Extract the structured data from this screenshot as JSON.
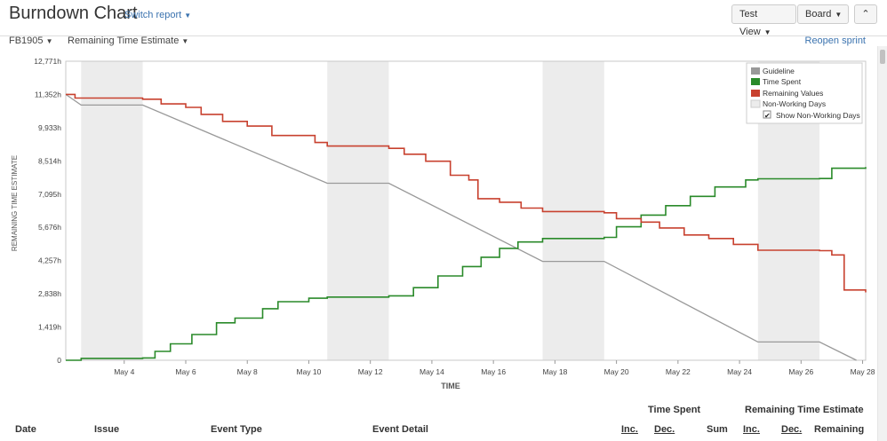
{
  "header": {
    "title": "Burndown Chart",
    "switch_report": "Switch report",
    "test_view": "Test View",
    "board": "Board",
    "collapse_glyph": "⌃"
  },
  "subbar": {
    "sprint": "FB1905",
    "estimate": "Remaining Time Estimate",
    "reopen": "Reopen sprint"
  },
  "chart_data": {
    "type": "line",
    "xlabel": "TIME",
    "ylabel": "REMAINING TIME ESTIMATE",
    "x_ticks": [
      "May 4",
      "May 6",
      "May 8",
      "May 10",
      "May 12",
      "May 14",
      "May 16",
      "May 18",
      "May 20",
      "May 22",
      "May 24",
      "May 26",
      "May 28"
    ],
    "y_ticks": [
      "0",
      "1,419h",
      "2,838h",
      "4,257h",
      "5,676h",
      "7,095h",
      "8,514h",
      "9,933h",
      "11,352h",
      "12,771h"
    ],
    "ylim": [
      0,
      12771
    ],
    "x_range_days": [
      "May 2.1",
      "May 28.1"
    ],
    "non_working_days": [
      [
        2.6,
        4.6
      ],
      [
        10.6,
        12.6
      ],
      [
        17.6,
        19.6
      ],
      [
        24.6,
        26.6
      ]
    ],
    "colors": {
      "guideline": "#999999",
      "time_spent": "#2a8a2a",
      "remaining": "#c8412f",
      "non_working": "#ececec"
    },
    "legend": {
      "position": "top-right",
      "items": [
        "Guideline",
        "Time Spent",
        "Remaining Values",
        "Non-Working Days"
      ],
      "checkbox_label": "Show Non-Working Days",
      "checkbox_checked": true
    },
    "series": [
      {
        "name": "Guideline",
        "points": [
          [
            2.1,
            11352
          ],
          [
            2.6,
            10900
          ],
          [
            4.6,
            10900
          ],
          [
            10.6,
            7560
          ],
          [
            12.6,
            7560
          ],
          [
            17.6,
            4220
          ],
          [
            19.6,
            4220
          ],
          [
            24.6,
            780
          ],
          [
            26.6,
            780
          ],
          [
            27.8,
            0
          ]
        ]
      },
      {
        "name": "Time Spent",
        "points": [
          [
            2.1,
            0
          ],
          [
            2.6,
            80
          ],
          [
            4.6,
            100
          ],
          [
            5.0,
            380
          ],
          [
            5.5,
            700
          ],
          [
            6.2,
            1100
          ],
          [
            7.0,
            1600
          ],
          [
            7.6,
            1800
          ],
          [
            8.5,
            2200
          ],
          [
            9.0,
            2500
          ],
          [
            10.0,
            2650
          ],
          [
            10.6,
            2700
          ],
          [
            12.6,
            2750
          ],
          [
            13.4,
            3100
          ],
          [
            14.2,
            3600
          ],
          [
            15.0,
            4000
          ],
          [
            15.6,
            4400
          ],
          [
            16.2,
            4780
          ],
          [
            16.8,
            5050
          ],
          [
            17.6,
            5200
          ],
          [
            19.6,
            5250
          ],
          [
            20.0,
            5700
          ],
          [
            20.8,
            6200
          ],
          [
            21.6,
            6600
          ],
          [
            22.4,
            7000
          ],
          [
            23.2,
            7400
          ],
          [
            24.2,
            7700
          ],
          [
            24.6,
            7750
          ],
          [
            26.6,
            7760
          ],
          [
            27.0,
            8200
          ],
          [
            28.1,
            8250
          ]
        ]
      },
      {
        "name": "Remaining Values",
        "points": [
          [
            2.1,
            11352
          ],
          [
            2.4,
            11200
          ],
          [
            4.6,
            11150
          ],
          [
            5.2,
            10950
          ],
          [
            6.0,
            10800
          ],
          [
            6.5,
            10500
          ],
          [
            7.2,
            10200
          ],
          [
            8.0,
            10000
          ],
          [
            8.8,
            9600
          ],
          [
            10.2,
            9300
          ],
          [
            10.6,
            9150
          ],
          [
            12.6,
            9050
          ],
          [
            13.1,
            8800
          ],
          [
            13.8,
            8500
          ],
          [
            14.6,
            7900
          ],
          [
            15.2,
            7700
          ],
          [
            15.5,
            6900
          ],
          [
            16.2,
            6750
          ],
          [
            16.9,
            6500
          ],
          [
            17.6,
            6350
          ],
          [
            19.6,
            6300
          ],
          [
            20.0,
            6050
          ],
          [
            20.8,
            5900
          ],
          [
            21.4,
            5650
          ],
          [
            22.2,
            5350
          ],
          [
            23.0,
            5200
          ],
          [
            23.8,
            4950
          ],
          [
            24.6,
            4700
          ],
          [
            26.6,
            4680
          ],
          [
            27.0,
            4500
          ],
          [
            27.4,
            3000
          ],
          [
            28.1,
            2900
          ]
        ]
      }
    ]
  },
  "table": {
    "group_time_spent": "Time Spent",
    "group_remaining": "Remaining Time Estimate",
    "columns": [
      "Date",
      "Issue",
      "Event Type",
      "Event Detail",
      "Inc.",
      "Dec.",
      "Sum",
      "Inc.",
      "Dec.",
      "Remaining"
    ]
  }
}
